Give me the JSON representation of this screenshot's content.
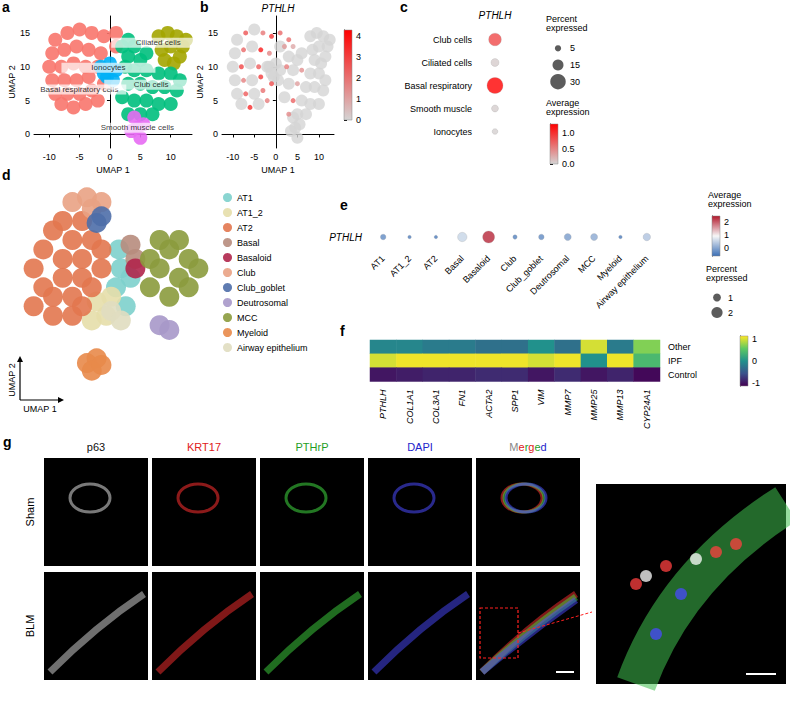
{
  "chart_data": [
    {
      "panel": "a",
      "type": "scatter",
      "x_label": "UMAP 1",
      "y_label": "UMAP 2",
      "xlim": [
        -12.5,
        13.5
      ],
      "xticks": [
        -10,
        -5,
        0,
        5,
        10
      ],
      "ylim": [
        -2,
        17.5
      ],
      "yticks": [
        0,
        5,
        10,
        15
      ],
      "series": [
        {
          "name": "Basal respiratory cells",
          "color": "#F8766D",
          "points": [
            [
              -9,
              14
            ],
            [
              -7,
              15
            ],
            [
              -5,
              15.5
            ],
            [
              -3,
              15
            ],
            [
              -1,
              14.5
            ],
            [
              -9.5,
              12
            ],
            [
              -7.5,
              12.5
            ],
            [
              -5.5,
              13
            ],
            [
              -3.5,
              12.5
            ],
            [
              -1.5,
              12
            ],
            [
              -10,
              10
            ],
            [
              -8,
              10
            ],
            [
              -6,
              10.5
            ],
            [
              -4,
              10
            ],
            [
              -9.5,
              8
            ],
            [
              -7.5,
              8
            ],
            [
              -5.5,
              8
            ],
            [
              -3.5,
              8.5
            ],
            [
              -9,
              6
            ],
            [
              -7,
              6
            ],
            [
              -5,
              6
            ],
            [
              -3,
              6.5
            ],
            [
              -8,
              4.5
            ],
            [
              -6,
              4
            ],
            [
              -4,
              4.5
            ],
            [
              -2,
              5
            ],
            [
              -1,
              7.5
            ],
            [
              -2,
              10
            ],
            [
              1,
              15
            ],
            [
              1,
              13
            ]
          ]
        },
        {
          "name": "Ciliated cells",
          "color": "#A3A500",
          "points": [
            [
              8,
              14.5
            ],
            [
              9.5,
              15
            ],
            [
              11,
              14.5
            ],
            [
              12,
              13
            ],
            [
              8.5,
              12.5
            ],
            [
              10,
              13
            ],
            [
              11.5,
              11.5
            ],
            [
              9,
              11
            ],
            [
              10.5,
              10.5
            ],
            [
              12.5,
              14
            ]
          ]
        },
        {
          "name": "Club cells",
          "color": "#00BF7D",
          "points": [
            [
              2,
              13
            ],
            [
              3,
              14
            ],
            [
              4,
              13
            ],
            [
              3,
              11.5
            ],
            [
              5,
              11
            ],
            [
              6,
              12
            ],
            [
              2.5,
              10
            ],
            [
              4,
              9.5
            ],
            [
              6,
              9.5
            ],
            [
              8,
              9
            ],
            [
              10,
              9
            ],
            [
              11.5,
              8
            ],
            [
              3,
              7.5
            ],
            [
              5,
              7.5
            ],
            [
              7,
              7
            ],
            [
              9,
              7
            ],
            [
              11,
              6.5
            ],
            [
              2,
              5.5
            ],
            [
              4,
              5
            ],
            [
              6,
              5
            ],
            [
              8,
              4.5
            ],
            [
              10,
              4.5
            ],
            [
              3,
              3
            ],
            [
              5,
              3
            ],
            [
              7,
              3
            ]
          ]
        },
        {
          "name": "Ionocytes",
          "color": "#00B0F6",
          "points": [
            [
              -1.5,
              10
            ],
            [
              0,
              10.5
            ],
            [
              1,
              9.5
            ],
            [
              -0.5,
              8.5
            ],
            [
              0.5,
              8
            ],
            [
              -1,
              9
            ]
          ]
        },
        {
          "name": "Smooth muscle cells",
          "color": "#E76BF3",
          "points": [
            [
              4,
              2.5
            ],
            [
              4.5,
              1
            ],
            [
              5,
              -0.5
            ],
            [
              3.5,
              0.5
            ],
            [
              5.5,
              1.5
            ]
          ]
        }
      ]
    },
    {
      "panel": "b",
      "type": "scatter",
      "title": "PTHLH",
      "x_label": "UMAP 1",
      "y_label": "UMAP 2",
      "xlim": [
        -12.5,
        13.5
      ],
      "xticks": [
        -10,
        -5,
        0,
        5,
        10
      ],
      "ylim": [
        -2,
        17.5
      ],
      "yticks": [
        0,
        5,
        10,
        15
      ],
      "points": [
        [
          -9,
          14,
          0
        ],
        [
          -5,
          15.5,
          0
        ],
        [
          -9.5,
          12,
          0
        ],
        [
          -5.5,
          13,
          0
        ],
        [
          -10,
          10,
          0
        ],
        [
          -6,
          10.5,
          0
        ],
        [
          -9.5,
          8,
          0
        ],
        [
          -5.5,
          8,
          0
        ],
        [
          -9,
          6,
          0
        ],
        [
          -5,
          6,
          0
        ],
        [
          -8,
          4.5,
          0
        ],
        [
          -4,
          4.5,
          0
        ],
        [
          -2,
          10,
          0
        ],
        [
          1,
          13,
          0
        ],
        [
          3,
          11.5,
          0
        ],
        [
          5,
          11,
          0
        ],
        [
          6,
          12,
          0
        ],
        [
          4,
          9.5,
          0
        ],
        [
          8,
          9,
          0
        ],
        [
          10,
          9,
          0
        ],
        [
          11.5,
          8,
          0
        ],
        [
          3,
          7.5,
          0
        ],
        [
          7,
          7,
          0
        ],
        [
          9,
          7,
          0
        ],
        [
          11,
          6.5,
          0
        ],
        [
          2,
          5.5,
          0
        ],
        [
          6,
          5,
          0
        ],
        [
          8,
          4.5,
          0
        ],
        [
          10,
          4.5,
          0
        ],
        [
          5,
          3,
          0
        ],
        [
          7,
          3,
          0
        ],
        [
          8,
          14.5,
          0
        ],
        [
          9.5,
          15,
          0
        ],
        [
          11,
          14.5,
          0
        ],
        [
          12,
          13,
          0
        ],
        [
          8.5,
          12.5,
          0
        ],
        [
          10,
          13,
          0
        ],
        [
          11.5,
          11.5,
          0
        ],
        [
          9,
          11,
          0
        ],
        [
          10.5,
          10.5,
          0
        ],
        [
          12.5,
          14,
          0
        ],
        [
          -1.5,
          10,
          0
        ],
        [
          0,
          10.5,
          0
        ],
        [
          1,
          9.5,
          0
        ],
        [
          -0.5,
          8.5,
          0
        ],
        [
          0.5,
          8,
          0
        ],
        [
          -1,
          9,
          0
        ],
        [
          4,
          2.5,
          0
        ],
        [
          4.5,
          1,
          0
        ],
        [
          5,
          -0.5,
          0
        ],
        [
          3.5,
          0.5,
          0
        ],
        [
          5.5,
          1.5,
          0
        ],
        [
          2,
          13,
          1.2
        ],
        [
          3,
          14,
          2.1
        ],
        [
          4,
          13,
          0.9
        ],
        [
          6,
          9.5,
          1.4
        ],
        [
          2.5,
          10,
          1.8
        ],
        [
          5,
          7.5,
          1.1
        ],
        [
          4,
          5,
          2.3
        ],
        [
          3,
          3,
          1.5
        ],
        [
          -7,
          15,
          2.6
        ],
        [
          -3,
          15,
          1.9
        ],
        [
          -1,
          14.5,
          3.2
        ],
        [
          -7.5,
          12.5,
          2.2
        ],
        [
          -3.5,
          12.5,
          3.8
        ],
        [
          -1.5,
          12,
          1.6
        ],
        [
          -8,
          10,
          2.9
        ],
        [
          -4,
          10,
          2.4
        ],
        [
          -7.5,
          8,
          1.7
        ],
        [
          -3.5,
          8.5,
          3.1
        ],
        [
          -7,
          6,
          2.5
        ],
        [
          -3,
          6.5,
          2
        ],
        [
          -6,
          4,
          3.4
        ],
        [
          -2,
          5,
          1.8
        ],
        [
          -1,
          7.5,
          2.7
        ],
        [
          1,
          15,
          2.2
        ]
      ],
      "colorbar": {
        "range": [
          0,
          4.3
        ],
        "ticks": [
          0,
          1,
          2,
          3,
          4
        ]
      }
    },
    {
      "panel": "c",
      "type": "dotplot",
      "gene": "PTHLH",
      "categories": [
        "Club cells",
        "Ciliated cells",
        "Basal respiratory",
        "Smooth muscle",
        "Ionocytes"
      ],
      "percent_expressed": [
        20,
        8,
        32,
        6,
        4
      ],
      "average_expression": [
        0.85,
        0.05,
        1.3,
        0.04,
        0.03
      ],
      "size_legend": {
        "title": "Percent expressed",
        "values": [
          5,
          15,
          30
        ]
      },
      "colorbar": {
        "title": "Average expression",
        "range": [
          0,
          1.3
        ],
        "ticks": [
          {
            "value": 0,
            "label": "0.0"
          },
          {
            "value": 0.5,
            "label": "0.5"
          },
          {
            "value": 1,
            "label": "1.0"
          }
        ]
      }
    },
    {
      "panel": "d",
      "type": "scatter",
      "x_label": "UMAP 1",
      "y_label": "UMAP 2",
      "tick_labels": false,
      "legend": "right",
      "series": [
        {
          "name": "AT1",
          "color": "#7dd0cc",
          "points": [
            [
              9.5,
              10
            ],
            [
              10,
              12
            ],
            [
              9.8,
              14
            ],
            [
              10.5,
              8
            ],
            [
              11,
              11
            ]
          ]
        },
        {
          "name": "AT1_2",
          "color": "#e6deaa",
          "points": [
            [
              7,
              6.5
            ],
            [
              8.5,
              7
            ],
            [
              9,
              9
            ],
            [
              7.5,
              8.5
            ]
          ]
        },
        {
          "name": "AT2",
          "color": "#e2774f",
          "points": [
            [
              1,
              12
            ],
            [
              2,
              14
            ],
            [
              3,
              16
            ],
            [
              4,
              17
            ],
            [
              6,
              17
            ],
            [
              2,
              10
            ],
            [
              4,
              11
            ],
            [
              4,
              13
            ],
            [
              5,
              15
            ],
            [
              6,
              13
            ],
            [
              7,
              15
            ],
            [
              3,
              9
            ],
            [
              5,
              9
            ],
            [
              6,
              11
            ],
            [
              7,
              10
            ],
            [
              8,
              12
            ],
            [
              1,
              8
            ],
            [
              3,
              7
            ],
            [
              5,
              7
            ],
            [
              8,
              14
            ],
            [
              6,
              8
            ]
          ]
        },
        {
          "name": "Basal",
          "color": "#b78c7d",
          "points": [
            [
              11.5,
              13
            ],
            [
              11,
              14.5
            ]
          ]
        },
        {
          "name": "Basaloid",
          "color": "#b0264b",
          "points": [
            [
              11.5,
              12
            ]
          ]
        },
        {
          "name": "Club",
          "color": "#e9a284",
          "points": [
            [
              5,
              19
            ],
            [
              6.5,
              19.5
            ],
            [
              8,
              19
            ],
            [
              7,
              18.3
            ]
          ]
        },
        {
          "name": "Club_goblet",
          "color": "#4e6ea8",
          "points": [
            [
              7.5,
              16.8
            ],
            [
              8,
              17.5
            ]
          ]
        },
        {
          "name": "Deutrosomal",
          "color": "#a798c9",
          "points": [
            [
              14,
              6
            ],
            [
              15,
              5.5
            ]
          ]
        },
        {
          "name": "MCC",
          "color": "#8b9b3d",
          "points": [
            [
              13,
              10
            ],
            [
              14,
              12
            ],
            [
              15,
              14
            ],
            [
              16,
              15
            ],
            [
              17,
              13
            ],
            [
              16,
              11
            ],
            [
              15,
              9
            ],
            [
              17,
              10
            ],
            [
              18,
              12
            ],
            [
              14,
              15
            ],
            [
              13,
              13
            ]
          ]
        },
        {
          "name": "Myeloid",
          "color": "#e8894a",
          "points": [
            [
              6.5,
              2
            ],
            [
              7.5,
              2.5
            ],
            [
              7,
              1.2
            ],
            [
              8,
              1.8
            ]
          ]
        },
        {
          "name": "Airway epithelium",
          "color": "#e0ddc0",
          "points": [
            [
              9,
              7.5
            ],
            [
              10,
              6.5
            ]
          ]
        }
      ]
    },
    {
      "panel": "e",
      "type": "dotplot",
      "gene": "PTHLH",
      "categories": [
        "AT1",
        "AT1_2",
        "AT2",
        "Basal",
        "Basaloid",
        "Club",
        "Club_goblet",
        "Deutrosomal",
        "MCC",
        "Myeloid",
        "Airway epithelium"
      ],
      "percent_expressed": [
        0.5,
        0.2,
        0.2,
        1.4,
        2.3,
        0.3,
        0.5,
        0.8,
        0.8,
        0.2,
        0.9
      ],
      "average_expression": [
        -0.3,
        -0.45,
        -0.5,
        0.55,
        2.4,
        -0.4,
        -0.3,
        -0.1,
        0.05,
        -0.5,
        0.35
      ],
      "size_legend": {
        "title": "Percent expressed",
        "values": [
          1,
          2
        ]
      },
      "colorbar": {
        "title": "Average expression",
        "range": [
          -0.6,
          2.5
        ],
        "ticks": [
          0,
          1,
          2
        ]
      }
    },
    {
      "panel": "f",
      "type": "heatmap",
      "categories": [
        "PTHLH",
        "COL1A1",
        "COL3A1",
        "FN1",
        "ACTA2",
        "SPP1",
        "VIM",
        "MMP7",
        "MMP25",
        "MMP13",
        "CYP24A1"
      ],
      "rows": [
        "Other",
        "IPF",
        "Control"
      ],
      "cells": [
        [
          -0.1,
          -0.1,
          -0.2,
          -0.2,
          -0.3,
          -0.3,
          0.0,
          -0.3,
          1.0,
          -0.2,
          0.7
        ],
        [
          1.0,
          1.1,
          1.1,
          1.1,
          1.1,
          1.1,
          1.0,
          1.1,
          0.0,
          1.1,
          0.4
        ],
        [
          -1.0,
          -0.95,
          -0.9,
          -0.9,
          -0.85,
          -0.85,
          -1.0,
          -0.85,
          -1.0,
          -0.9,
          -1.1
        ]
      ],
      "colorbar": {
        "range": [
          -1.15,
          1.15
        ],
        "ticks": [
          -1,
          0,
          1
        ]
      }
    }
  ],
  "image_panel": {
    "panel": "g",
    "columns": [
      "p63",
      "KRT17",
      "PTHrP",
      "DAPI",
      "Merged"
    ],
    "rows": [
      "Sham",
      "BLM"
    ]
  }
}
